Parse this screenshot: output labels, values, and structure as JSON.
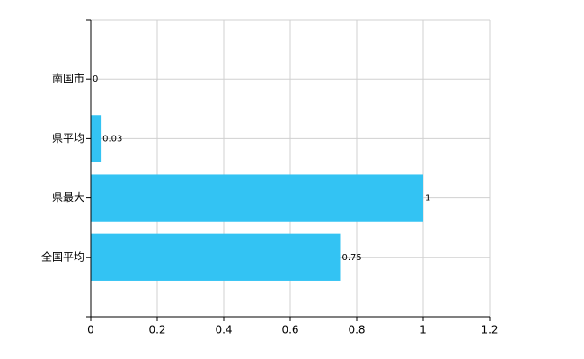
{
  "chart_data": {
    "type": "bar",
    "orientation": "horizontal",
    "categories": [
      "南国市",
      "県平均",
      "県最大",
      "全国平均"
    ],
    "values": [
      0,
      0.03,
      1,
      0.75
    ],
    "color": "#33c3f3",
    "xlim": [
      0,
      1.2
    ],
    "xticks": [
      0,
      0.2,
      0.4,
      0.6,
      0.8,
      1,
      1.2
    ],
    "grid": true
  }
}
